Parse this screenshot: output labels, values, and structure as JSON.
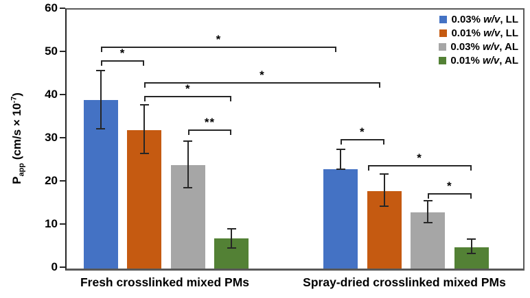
{
  "figure": {
    "y_axis": {
      "title_main": "P",
      "title_sub": "app",
      "title_mid": " (cm/s × 10",
      "title_sup": "-7",
      "title_end": ")"
    },
    "legend": {
      "items": [
        {
          "pre": "0.03% ",
          "wv": "w/v",
          "post": ", LL",
          "color": "#4472C4"
        },
        {
          "pre": "0.01% ",
          "wv": "w/v",
          "post": ", LL",
          "color": "#C55A11"
        },
        {
          "pre": "0.03% ",
          "wv": "w/v",
          "post": ", AL",
          "color": "#A6A6A6"
        },
        {
          "pre": "0.01% ",
          "wv": "w/v",
          "post": ", AL",
          "color": "#538135"
        }
      ]
    }
  },
  "chart_data": {
    "type": "bar",
    "title": "",
    "xlabel": "",
    "ylabel": "Papp (cm/s × 10^-7)",
    "ylim": [
      0,
      60
    ],
    "yticks": [
      0,
      10,
      20,
      30,
      40,
      50,
      60
    ],
    "grid": false,
    "legend_position": "top-right-inside",
    "error_bar_color": "#262626",
    "categories": [
      "Fresh crosslinked mixed PMs",
      "Spray-dried crosslinked mixed PMs"
    ],
    "series": [
      {
        "name": "0.03% w/v, LL",
        "color": "#4472C4",
        "values": [
          39,
          23
        ],
        "err_up": [
          6.8,
          4.6
        ],
        "err_down": [
          6.6,
          0
        ]
      },
      {
        "name": "0.01% w/v, LL",
        "color": "#C55A11",
        "values": [
          32,
          18
        ],
        "err_up": [
          5.9,
          3.9
        ],
        "err_down": [
          5.4,
          3.5
        ]
      },
      {
        "name": "0.03% w/v, AL",
        "color": "#A6A6A6",
        "values": [
          24,
          13
        ],
        "err_up": [
          5.6,
          2.7
        ],
        "err_down": [
          5.3,
          2.4
        ]
      },
      {
        "name": "0.01% w/v, AL",
        "color": "#538135",
        "values": [
          7,
          5
        ],
        "err_up": [
          2.2,
          1.9
        ],
        "err_down": [
          2.2,
          1.5
        ]
      }
    ],
    "significance_brackets": [
      {
        "series_a": 0,
        "group_a": 0,
        "series_b": 0,
        "group_b": 1,
        "label": "*",
        "y": 51.3,
        "dx1": 0,
        "dx2": -6
      },
      {
        "series_a": 0,
        "group_a": 0,
        "series_b": 1,
        "group_b": 0,
        "label": "*",
        "y": 48.1,
        "dx1": 0,
        "dx2": 0
      },
      {
        "series_a": 1,
        "group_a": 0,
        "series_b": 1,
        "group_b": 1,
        "label": "*",
        "y": 43.0,
        "dx1": 0,
        "dx2": -6
      },
      {
        "series_a": 1,
        "group_a": 0,
        "series_b": 3,
        "group_b": 0,
        "label": "*",
        "y": 39.8,
        "dx1": 0,
        "dx2": 0
      },
      {
        "series_a": 2,
        "group_a": 0,
        "series_b": 3,
        "group_b": 0,
        "label": "**",
        "y": 32.0,
        "dx1": 0,
        "dx2": 0
      },
      {
        "series_a": 0,
        "group_a": 1,
        "series_b": 1,
        "group_b": 1,
        "label": "*",
        "y": 29.8,
        "dx1": 0,
        "dx2": 0
      },
      {
        "series_a": 1,
        "group_a": 1,
        "series_b": 3,
        "group_b": 1,
        "label": "*",
        "y": 23.8,
        "dx1": -24,
        "dx2": 0
      },
      {
        "series_a": 2,
        "group_a": 1,
        "series_b": 3,
        "group_b": 1,
        "label": "*",
        "y": 17.3,
        "dx1": 0,
        "dx2": 0
      }
    ]
  }
}
